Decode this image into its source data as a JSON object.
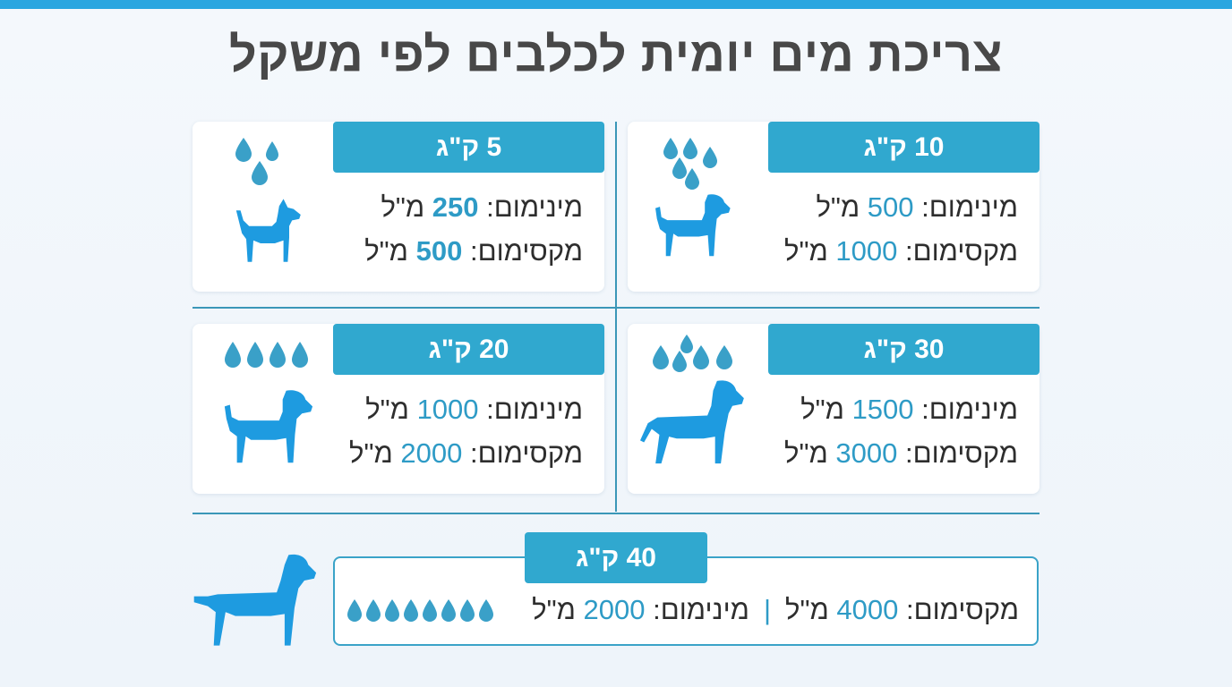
{
  "title": "צריכת מים יומית לכלבים לפי משקל",
  "labels": {
    "min": "מינימום:",
    "max": "מקסימום:"
  },
  "unit": "מ\"ל",
  "cards": [
    {
      "weight": "5 ק\"ג",
      "min": "250",
      "max": "500",
      "drops": 3
    },
    {
      "weight": "10 ק\"ג",
      "min": "500",
      "max": "1000",
      "drops": 5
    },
    {
      "weight": "20 ק\"ג",
      "min": "1000",
      "max": "2000",
      "drops": 4
    },
    {
      "weight": "30 ק\"ג",
      "min": "1500",
      "max": "3000",
      "drops": 5
    }
  ],
  "bottom": {
    "weight": "40 ק\"ג",
    "max": "4000",
    "min": "2000",
    "separator": "|",
    "drops": 8
  },
  "colors": {
    "accent": "#30a8cf",
    "dog": "#1e9be0",
    "drop": "#3aa0c8",
    "title": "#484848"
  },
  "icons": {
    "dog": "dog-silhouette-icon",
    "drop": "water-drop-icon"
  }
}
